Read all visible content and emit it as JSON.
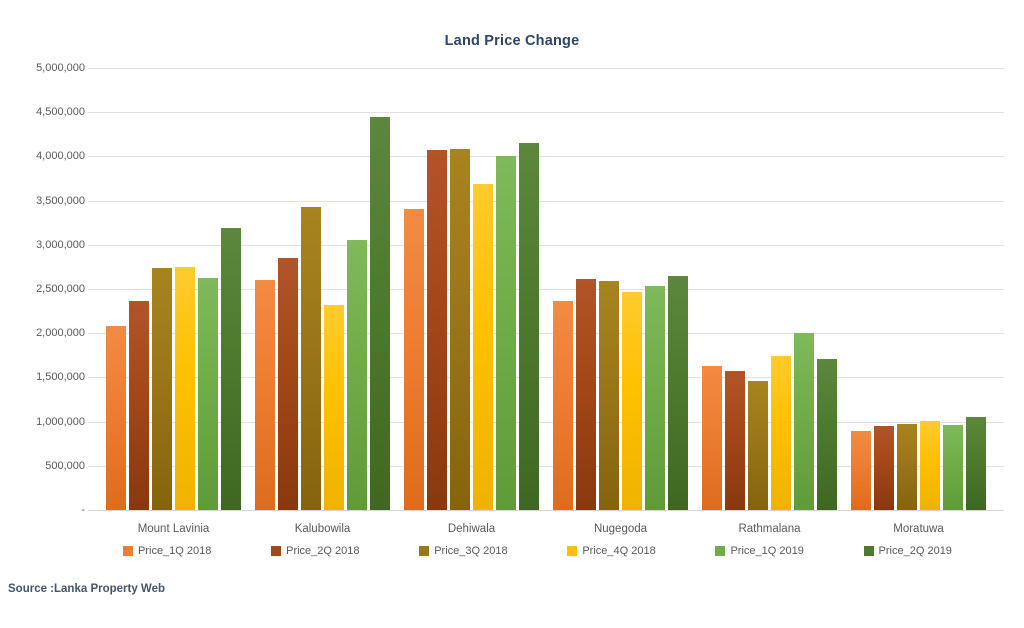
{
  "source_note": "Source :Lanka Property Web",
  "chart_data": {
    "type": "bar",
    "title": "Land Price Change",
    "categories": [
      "Mount Lavinia",
      "Kalubowila",
      "Dehiwala",
      "Nugegoda",
      "Rathmalana",
      "Moratuwa"
    ],
    "series": [
      {
        "name": "Price_1Q 2018",
        "color": "#ED7D31",
        "color_light": "#F28B44",
        "color_dark": "#DE6C1E",
        "values": [
          2080000,
          2600000,
          3400000,
          2370000,
          1630000,
          890000
        ]
      },
      {
        "name": "Price_2Q 2018",
        "color": "#A34718",
        "color_light": "#B25427",
        "color_dark": "#89380E",
        "values": [
          2370000,
          2850000,
          4070000,
          2610000,
          1570000,
          950000
        ]
      },
      {
        "name": "Price_3Q 2018",
        "color": "#9A7619",
        "color_light": "#A8841F",
        "color_dark": "#85640D",
        "values": [
          2740000,
          3430000,
          4080000,
          2590000,
          1460000,
          970000
        ]
      },
      {
        "name": "Price_4Q 2018",
        "color": "#FFC000",
        "color_light": "#FFCB2E",
        "color_dark": "#EFB200",
        "values": [
          2750000,
          2320000,
          3690000,
          2470000,
          1740000,
          1010000
        ]
      },
      {
        "name": "Price_1Q 2019",
        "color": "#70AD47",
        "color_light": "#7EBA5B",
        "color_dark": "#609A39",
        "values": [
          2630000,
          3060000,
          4000000,
          2530000,
          2000000,
          960000
        ]
      },
      {
        "name": "Price_2Q 2019",
        "color": "#4E7A2E",
        "color_light": "#5C873D",
        "color_dark": "#3F6721",
        "values": [
          3190000,
          4450000,
          4150000,
          2650000,
          1710000,
          1050000
        ]
      }
    ],
    "ylim": [
      0,
      5000000
    ],
    "ytick_step": 500000,
    "ytick_labels_top_to_bottom": [
      "5,000,000",
      "4,500,000",
      "4,000,000",
      "3,500,000",
      "3,000,000",
      "2,500,000",
      "2,000,000",
      "1,500,000",
      "1,000,000",
      "500,000",
      "-"
    ],
    "grid": true,
    "legend_position": "bottom",
    "title_color": "#2B4668",
    "axis_text_color": "#595959",
    "grid_color": "#E2E2E2"
  }
}
